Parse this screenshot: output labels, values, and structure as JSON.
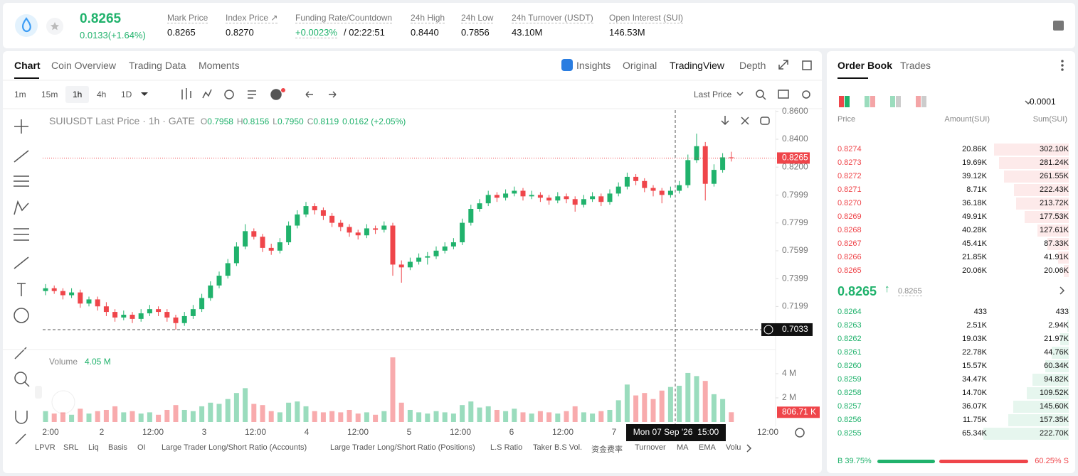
{
  "header": {
    "price": "0.8265",
    "change": "0.0133(+1.64%)",
    "stats": [
      {
        "label": "Mark Price",
        "value": "0.8265"
      },
      {
        "label": "Index Price ↗",
        "value": "0.8270"
      },
      {
        "label": "Funding Rate/Countdown",
        "value": "+0.0023%",
        "extra": "/ 02:22:51"
      },
      {
        "label": "24h High",
        "value": "0.8440"
      },
      {
        "label": "24h Low",
        "value": "0.7856"
      },
      {
        "label": "24h Turnover (USDT)",
        "value": "43.10M"
      },
      {
        "label": "Open Interest (SUI)",
        "value": "146.53M"
      }
    ]
  },
  "tabs": {
    "left": [
      "Chart",
      "Coin Overview",
      "Trading Data",
      "Moments"
    ],
    "right": [
      "Insights",
      "Original",
      "TradingView",
      "Depth"
    ]
  },
  "toolbar": {
    "intervals": [
      "1m",
      "15m",
      "1h",
      "4h",
      "1D"
    ],
    "price_type": "Last Price"
  },
  "chart_data": {
    "type": "candlestick",
    "title": "SUIUSDT Last Price · 1h · GATE",
    "ohlc": [
      {
        "key": "O",
        "value": "0.7958"
      },
      {
        "key": "H",
        "value": "0.8156"
      },
      {
        "key": "L",
        "value": "0.7950"
      },
      {
        "key": "C",
        "value": "0.8119"
      }
    ],
    "change": "0.0162 (+2.05%)",
    "up_color": "#20b26c",
    "down_color": "#ef454a",
    "candles": [
      [
        0.731,
        0.736,
        0.728,
        0.733
      ],
      [
        0.733,
        0.735,
        0.729,
        0.731
      ],
      [
        0.731,
        0.733,
        0.725,
        0.728
      ],
      [
        0.728,
        0.733,
        0.726,
        0.73
      ],
      [
        0.73,
        0.732,
        0.719,
        0.722
      ],
      [
        0.722,
        0.727,
        0.72,
        0.725
      ],
      [
        0.725,
        0.727,
        0.717,
        0.72
      ],
      [
        0.72,
        0.723,
        0.713,
        0.716
      ],
      [
        0.716,
        0.718,
        0.709,
        0.712
      ],
      [
        0.712,
        0.717,
        0.71,
        0.714
      ],
      [
        0.714,
        0.716,
        0.708,
        0.711
      ],
      [
        0.711,
        0.718,
        0.709,
        0.715
      ],
      [
        0.715,
        0.721,
        0.713,
        0.718
      ],
      [
        0.718,
        0.72,
        0.713,
        0.716
      ],
      [
        0.716,
        0.718,
        0.709,
        0.712
      ],
      [
        0.712,
        0.714,
        0.7033,
        0.708
      ],
      [
        0.708,
        0.716,
        0.706,
        0.713
      ],
      [
        0.713,
        0.721,
        0.711,
        0.718
      ],
      [
        0.718,
        0.729,
        0.716,
        0.726
      ],
      [
        0.726,
        0.738,
        0.724,
        0.735
      ],
      [
        0.735,
        0.745,
        0.733,
        0.742
      ],
      [
        0.742,
        0.754,
        0.74,
        0.751
      ],
      [
        0.751,
        0.766,
        0.749,
        0.763
      ],
      [
        0.763,
        0.779,
        0.761,
        0.774
      ],
      [
        0.774,
        0.776,
        0.768,
        0.77
      ],
      [
        0.77,
        0.772,
        0.759,
        0.762
      ],
      [
        0.762,
        0.765,
        0.757,
        0.76
      ],
      [
        0.76,
        0.769,
        0.758,
        0.766
      ],
      [
        0.766,
        0.781,
        0.764,
        0.778
      ],
      [
        0.778,
        0.789,
        0.776,
        0.786
      ],
      [
        0.786,
        0.795,
        0.784,
        0.792
      ],
      [
        0.792,
        0.794,
        0.786,
        0.789
      ],
      [
        0.789,
        0.791,
        0.782,
        0.785
      ],
      [
        0.785,
        0.787,
        0.777,
        0.78
      ],
      [
        0.78,
        0.782,
        0.774,
        0.777
      ],
      [
        0.777,
        0.779,
        0.77,
        0.773
      ],
      [
        0.773,
        0.775,
        0.768,
        0.771
      ],
      [
        0.771,
        0.779,
        0.769,
        0.776
      ],
      [
        0.776,
        0.778,
        0.772,
        0.775
      ],
      [
        0.775,
        0.781,
        0.773,
        0.778
      ],
      [
        0.778,
        0.78,
        0.742,
        0.75
      ],
      [
        0.75,
        0.753,
        0.737,
        0.748
      ],
      [
        0.748,
        0.755,
        0.746,
        0.752
      ],
      [
        0.752,
        0.758,
        0.75,
        0.755
      ],
      [
        0.755,
        0.759,
        0.75,
        0.756
      ],
      [
        0.756,
        0.763,
        0.754,
        0.76
      ],
      [
        0.76,
        0.766,
        0.758,
        0.763
      ],
      [
        0.763,
        0.769,
        0.761,
        0.766
      ],
      [
        0.766,
        0.783,
        0.764,
        0.78
      ],
      [
        0.78,
        0.793,
        0.778,
        0.79
      ],
      [
        0.79,
        0.797,
        0.788,
        0.794
      ],
      [
        0.794,
        0.803,
        0.792,
        0.8
      ],
      [
        0.8,
        0.802,
        0.795,
        0.798
      ],
      [
        0.798,
        0.804,
        0.796,
        0.801
      ],
      [
        0.801,
        0.806,
        0.799,
        0.803
      ],
      [
        0.803,
        0.805,
        0.796,
        0.799
      ],
      [
        0.799,
        0.803,
        0.797,
        0.8
      ],
      [
        0.8,
        0.802,
        0.795,
        0.798
      ],
      [
        0.798,
        0.8,
        0.793,
        0.796
      ],
      [
        0.796,
        0.802,
        0.794,
        0.799
      ],
      [
        0.799,
        0.801,
        0.794,
        0.797
      ],
      [
        0.797,
        0.799,
        0.788,
        0.793
      ],
      [
        0.793,
        0.8,
        0.791,
        0.797
      ],
      [
        0.797,
        0.802,
        0.795,
        0.799
      ],
      [
        0.799,
        0.801,
        0.792,
        0.795
      ],
      [
        0.795,
        0.804,
        0.793,
        0.801
      ],
      [
        0.801,
        0.809,
        0.799,
        0.806
      ],
      [
        0.806,
        0.816,
        0.804,
        0.813
      ],
      [
        0.813,
        0.815,
        0.807,
        0.81
      ],
      [
        0.81,
        0.812,
        0.802,
        0.805
      ],
      [
        0.805,
        0.807,
        0.799,
        0.803
      ],
      [
        0.803,
        0.805,
        0.794,
        0.8
      ],
      [
        0.8,
        0.806,
        0.798,
        0.803
      ],
      [
        0.803,
        0.81,
        0.801,
        0.807
      ],
      [
        0.807,
        0.829,
        0.805,
        0.825
      ],
      [
        0.825,
        0.844,
        0.823,
        0.835
      ],
      [
        0.835,
        0.838,
        0.796,
        0.808
      ],
      [
        0.808,
        0.822,
        0.806,
        0.818
      ],
      [
        0.818,
        0.83,
        0.816,
        0.827
      ],
      [
        0.827,
        0.831,
        0.824,
        0.8265
      ]
    ],
    "ylim": [
      0.689,
      0.8609
    ],
    "yticks": [
      {
        "value": 0.86,
        "label": "0.8600"
      },
      {
        "value": 0.84,
        "label": "0.8400"
      },
      {
        "value": 0.82,
        "label": "0.8200"
      },
      0.7999,
      0.7799,
      0.7599,
      0.7399,
      0.7199
    ],
    "xticks": [
      "2:00",
      "2",
      "12:00",
      "3",
      "12:00",
      "4",
      "12:00",
      "5",
      "12:00",
      "6",
      "12:00",
      "7",
      null,
      null,
      "12:00"
    ],
    "last_price": "0.8265",
    "crosshair_price": "0.7033",
    "crosshair_time": "Mon 07 Sep '26  15:00",
    "volume_label": "Volume",
    "volume_current": "4.05 M",
    "volume_last": "806.71 K",
    "volume_values": [
      0.9,
      0.7,
      0.8,
      0.6,
      1.1,
      0.7,
      0.9,
      1.0,
      1.3,
      0.8,
      0.9,
      0.7,
      0.8,
      0.6,
      1.0,
      1.4,
      1.0,
      0.9,
      1.3,
      1.6,
      1.5,
      1.9,
      2.4,
      2.8,
      1.5,
      1.4,
      0.9,
      0.8,
      1.6,
      1.7,
      1.3,
      0.9,
      0.8,
      0.9,
      0.8,
      1.0,
      0.7,
      0.8,
      0.6,
      0.9,
      5.35,
      1.6,
      1.0,
      0.8,
      0.7,
      0.9,
      0.8,
      0.7,
      1.4,
      1.7,
      1.2,
      1.3,
      1.0,
      0.9,
      1.1,
      0.8,
      0.7,
      0.9,
      0.8,
      0.7,
      0.9,
      1.3,
      0.8,
      0.7,
      0.9,
      1.0,
      1.8,
      3.1,
      2.2,
      2.4,
      1.9,
      2.6,
      2.9,
      3.0,
      4.06,
      3.8,
      3.4,
      2.3,
      1.9,
      0.80671
    ],
    "volume_ylim": [
      0,
      5.82
    ],
    "volume_yticks": [
      {
        "value": 2,
        "label": "2 M"
      },
      {
        "value": 4,
        "label": "4 M"
      }
    ]
  },
  "indicators": [
    "LPVR",
    "SRL",
    "Liq",
    "Basis",
    "OI",
    "Large Trader Long/Short Ratio (Accounts)",
    "Large Trader Long/Short Ratio (Positions)",
    "L.S Ratio",
    "Taker B.S Vol.",
    "资金费率",
    "Turnover",
    "MA",
    "EMA",
    "Volu"
  ],
  "order_book": {
    "tabs": [
      "Order Book",
      "Trades"
    ],
    "precision": "0.0001",
    "headers": [
      "Price",
      "Amount(SUI)",
      "Sum(SUI)"
    ],
    "asks": [
      {
        "price": "0.8274",
        "amount": "20.86K",
        "sum": {
          "value": 302100,
          "label": "302.10K"
        }
      },
      {
        "price": "0.8273",
        "amount": "19.69K",
        "sum": {
          "value": 281240,
          "label": "281.24K"
        }
      },
      {
        "price": "0.8272",
        "amount": "39.12K",
        "sum": {
          "value": 261550,
          "label": "261.55K"
        }
      },
      {
        "price": "0.8271",
        "amount": "8.71K",
        "sum": {
          "value": 222430,
          "label": "222.43K"
        }
      },
      {
        "price": "0.8270",
        "amount": "36.18K",
        "sum": {
          "value": 213720,
          "label": "213.72K"
        }
      },
      {
        "price": "0.8269",
        "amount": "49.91K",
        "sum": {
          "value": 177530,
          "label": "177.53K"
        }
      },
      {
        "price": "0.8268",
        "amount": "40.28K",
        "sum": {
          "value": 127610,
          "label": "127.61K"
        }
      },
      {
        "price": "0.8267",
        "amount": "45.41K",
        "sum": {
          "value": 87330,
          "label": "87.33K"
        }
      },
      {
        "price": "0.8266",
        "amount": "21.85K",
        "sum": {
          "value": 41910,
          "label": "41.91K"
        }
      },
      {
        "price": "0.8265",
        "amount": "20.06K",
        "sum": {
          "value": 20060,
          "label": "20.06K"
        }
      }
    ],
    "mid_price": "0.8265",
    "mark_price": "0.8265",
    "bids": [
      {
        "price": "0.8264",
        "amount": "433",
        "sum": 433
      },
      {
        "price": "0.8263",
        "amount": "2.51K",
        "sum": {
          "value": 2940,
          "label": "2.94K"
        }
      },
      {
        "price": "0.8262",
        "amount": "19.03K",
        "sum": {
          "value": 21970,
          "label": "21.97K"
        }
      },
      {
        "price": "0.8261",
        "amount": "22.78K",
        "sum": {
          "value": 44760,
          "label": "44.76K"
        }
      },
      {
        "price": "0.8260",
        "amount": "15.57K",
        "sum": {
          "value": 60340,
          "label": "60.34K"
        }
      },
      {
        "price": "0.8259",
        "amount": "34.47K",
        "sum": {
          "value": 94820,
          "label": "94.82K"
        }
      },
      {
        "price": "0.8258",
        "amount": "14.70K",
        "sum": {
          "value": 109520,
          "label": "109.52K"
        }
      },
      {
        "price": "0.8257",
        "amount": "36.07K",
        "sum": {
          "value": 145600,
          "label": "145.60K"
        }
      },
      {
        "price": "0.8256",
        "amount": "11.75K",
        "sum": {
          "value": 157350,
          "label": "157.35K"
        }
      },
      {
        "price": "0.8255",
        "amount": "65.34K",
        "sum": {
          "value": 222700,
          "label": "222.70K"
        }
      }
    ],
    "ratio": {
      "buy_letter": "B",
      "buy": 39.75,
      "buy_text": "39.75%",
      "sell": 60.25,
      "sell_text": "60.25%",
      "sell_letter": "S"
    }
  }
}
